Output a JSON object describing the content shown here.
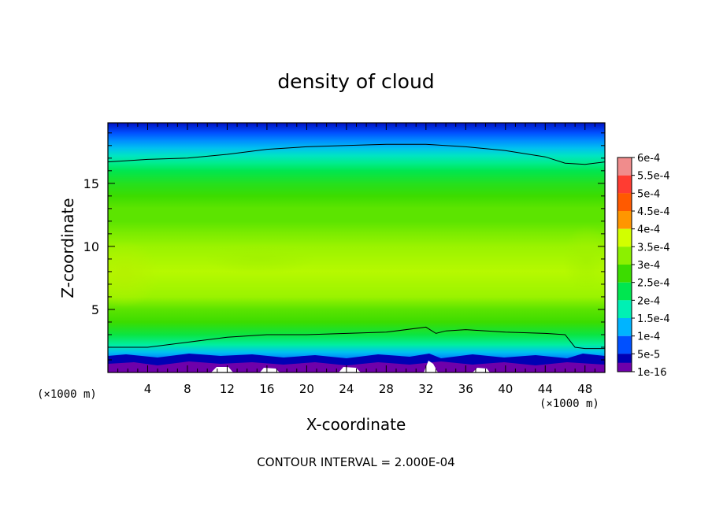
{
  "chart_data": {
    "type": "heatmap",
    "title": "density of cloud",
    "xlabel": "X-coordinate",
    "ylabel": "Z-coordinate",
    "x_unit_left": "(×1000 m)",
    "x_unit_right": "(×1000 m)",
    "xlim": [
      0,
      50
    ],
    "ylim": [
      0,
      19.8
    ],
    "x_ticks": [
      4,
      8,
      12,
      16,
      20,
      24,
      28,
      32,
      36,
      40,
      44,
      48
    ],
    "y_ticks": [
      5,
      10,
      15
    ],
    "footnote": "CONTOUR INTERVAL = 2.000E-04",
    "colorbar": {
      "labels": [
        "6e-4",
        "5.5e-4",
        "5e-4",
        "4.5e-4",
        "4e-4",
        "3.5e-4",
        "3e-4",
        "2.5e-4",
        "2e-4",
        "1.5e-4",
        "1e-4",
        "5e-5",
        "1e-16"
      ],
      "colors": [
        "#f08c8c",
        "#ff3c32",
        "#ff5a00",
        "#ff9600",
        "#d2ff00",
        "#8cf000",
        "#3cdc00",
        "#00e650",
        "#00f0b4",
        "#00b4ff",
        "#0050ff",
        "#0000b4",
        "#6e00aa"
      ]
    },
    "profile_z": [
      0.0,
      0.6,
      1.0,
      1.6,
      2.2,
      3.0,
      4.0,
      5.0,
      6.0,
      7.0,
      8.0,
      9.0,
      10.0,
      11.0,
      12.0,
      13.0,
      14.0,
      15.0,
      16.0,
      16.6,
      17.2,
      17.8,
      18.4,
      19.0,
      19.8
    ],
    "profile_density": [
      5e-05,
      8e-05,
      0.00012,
      0.00016,
      0.00021,
      0.00026,
      0.0003,
      0.00032,
      0.00036,
      0.00037,
      0.00038,
      0.00037,
      0.00036,
      0.00034,
      0.00032,
      0.00032,
      0.0003,
      0.00028,
      0.00025,
      0.00022,
      0.00019,
      0.00016,
      0.00013,
      0.0001,
      6e-05
    ],
    "contour_lines": [
      {
        "level": 0.0002,
        "x": [
          0,
          4,
          8,
          12,
          16,
          20,
          24,
          28,
          32,
          36,
          40,
          44,
          46,
          48,
          50
        ],
        "z": [
          16.7,
          16.9,
          17.0,
          17.3,
          17.7,
          17.9,
          18.0,
          18.1,
          18.1,
          17.9,
          17.6,
          17.1,
          16.6,
          16.5,
          16.7
        ]
      },
      {
        "level": 0.0002,
        "x": [
          0,
          4,
          8,
          12,
          16,
          20,
          24,
          28,
          32,
          33,
          34,
          36,
          40,
          44,
          46,
          47,
          48,
          50
        ],
        "z": [
          2.0,
          2.0,
          2.4,
          2.8,
          3.0,
          3.0,
          3.1,
          3.2,
          3.6,
          3.1,
          3.3,
          3.4,
          3.2,
          3.1,
          3.0,
          2.0,
          1.9,
          1.9
        ]
      }
    ]
  }
}
